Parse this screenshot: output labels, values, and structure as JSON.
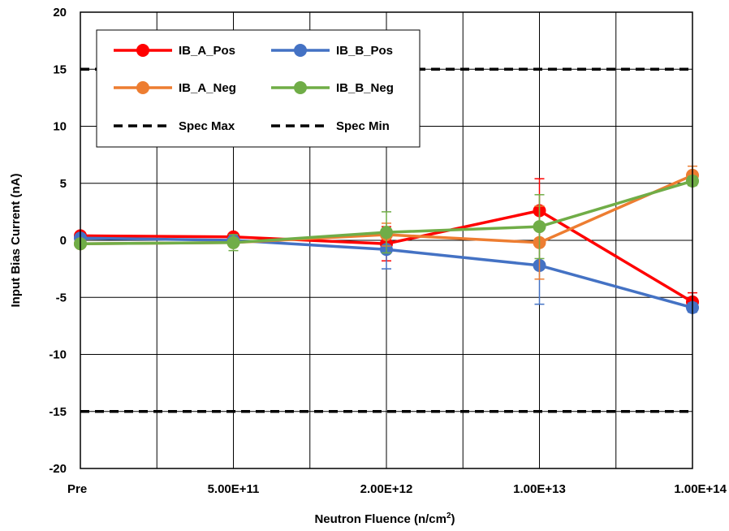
{
  "chart_data": {
    "type": "line",
    "categories": [
      "Pre",
      "5.00E+11",
      "2.00E+12",
      "1.00E+13",
      "1.00E+14"
    ],
    "xlabel": "Neutron Fluence (n/cm",
    "xlabel_sup": "2",
    "xlabel_end": ")",
    "ylabel": "Input Bias Current (nA)",
    "ylim": [
      -20,
      20
    ],
    "yticks": [
      -20,
      -15,
      -10,
      -5,
      0,
      5,
      10,
      15,
      20
    ],
    "grid": true,
    "legend_position": "top-left",
    "series": [
      {
        "name": "IB_A_Pos",
        "color": "#ff0000",
        "values": [
          0.4,
          0.3,
          -0.3,
          2.6,
          -5.4
        ],
        "err": [
          0.2,
          0.3,
          1.5,
          2.8,
          0.8
        ]
      },
      {
        "name": "IB_B_Pos",
        "color": "#4472c4",
        "values": [
          0.2,
          0.0,
          -0.8,
          -2.2,
          -5.9
        ],
        "err": [
          0.2,
          0.3,
          1.7,
          3.4,
          0.4
        ]
      },
      {
        "name": "IB_A_Neg",
        "color": "#ed7d31",
        "values": [
          -0.3,
          -0.2,
          0.5,
          -0.2,
          5.7
        ],
        "err": [
          0.2,
          0.3,
          1.0,
          3.2,
          0.8
        ]
      },
      {
        "name": "IB_B_Neg",
        "color": "#70ad47",
        "values": [
          -0.3,
          -0.2,
          0.7,
          1.2,
          5.2
        ],
        "err": [
          0.2,
          0.7,
          1.8,
          2.8,
          0.4
        ]
      }
    ],
    "reference_lines": [
      {
        "name": "Spec Max",
        "value": 15,
        "color": "#000000"
      },
      {
        "name": "Spec Min",
        "value": -15,
        "color": "#000000"
      }
    ]
  }
}
